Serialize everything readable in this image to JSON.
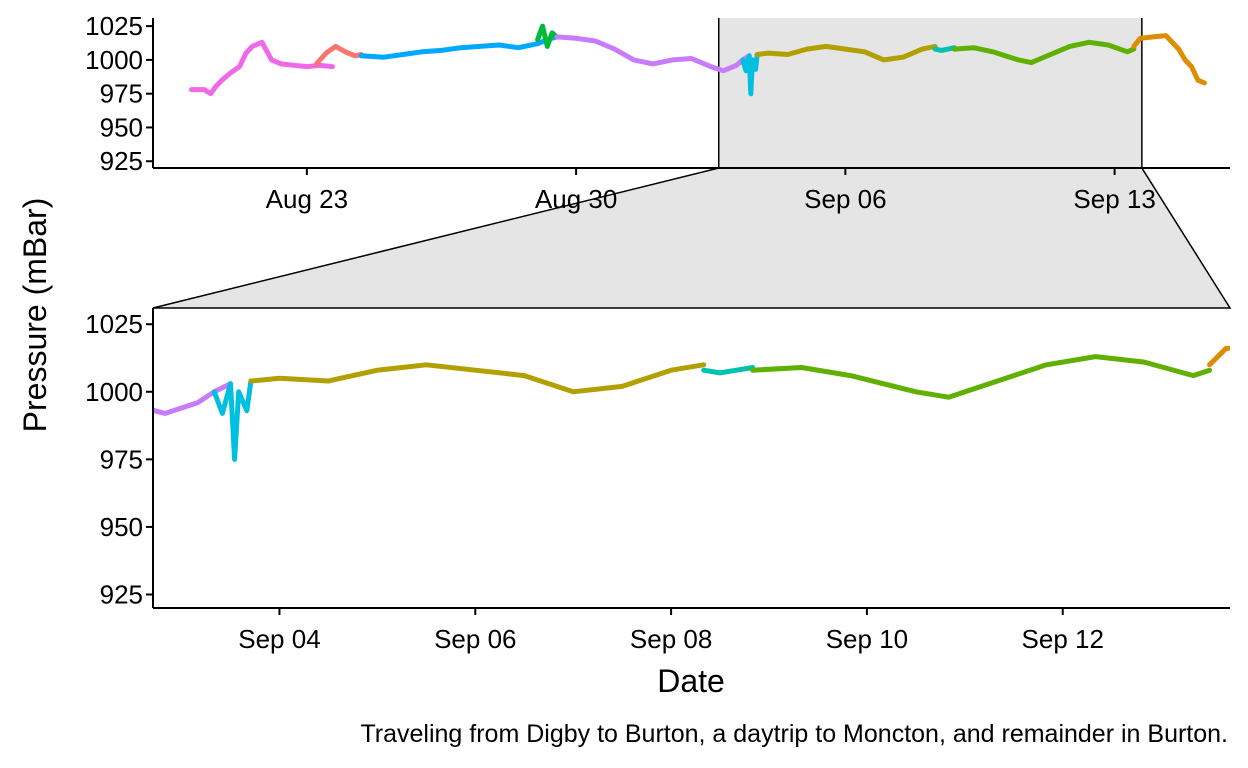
{
  "chart_data": {
    "type": "line",
    "ylabel": "Pressure (mBar)",
    "xlabel": "Date",
    "caption": "Traveling from Digby to Burton, a daytrip to Moncton, and remainder in Burton.",
    "colors": {
      "s1": "#f068e8",
      "s2": "#f8766d",
      "s3": "#00a9ff",
      "s4": "#00ba38",
      "s5": "#c77cff",
      "s6": "#00bfe0",
      "s7": "#b2a000",
      "s8": "#00c0b0",
      "s9": "#5fb000",
      "s10": "#de8c00"
    },
    "zoom_shading": "#e5e5e5",
    "overview": {
      "xlim": [
        "2023-08-19T00:00",
        "2023-09-16T00:00"
      ],
      "ylim": [
        920,
        1031
      ],
      "y_ticks": [
        925,
        950,
        975,
        1000,
        1025
      ],
      "x_ticks": [
        {
          "date": "2023-08-23T00:00",
          "label": "Aug 23"
        },
        {
          "date": "2023-08-30T00:00",
          "label": "Aug 30"
        },
        {
          "date": "2023-09-06T00:00",
          "label": "Sep 06"
        },
        {
          "date": "2023-09-13T00:00",
          "label": "Sep 13"
        }
      ],
      "zoom_window": [
        "2023-09-02T17:00",
        "2023-09-13T17:00"
      ]
    },
    "detail": {
      "xlim": [
        "2023-09-02T17:00",
        "2023-09-13T17:00"
      ],
      "ylim": [
        920,
        1031
      ],
      "y_ticks": [
        925,
        950,
        975,
        1000,
        1025
      ],
      "x_ticks": [
        {
          "date": "2023-09-04T00:00",
          "label": "Sep 04"
        },
        {
          "date": "2023-09-06T00:00",
          "label": "Sep 06"
        },
        {
          "date": "2023-09-08T00:00",
          "label": "Sep 08"
        },
        {
          "date": "2023-09-10T00:00",
          "label": "Sep 10"
        },
        {
          "date": "2023-09-12T00:00",
          "label": "Sep 12"
        }
      ]
    },
    "series": [
      {
        "color": "s1",
        "x": [
          "2023-08-20T00:00",
          "2023-08-20T08:00",
          "2023-08-20T12:00",
          "2023-08-20T15:00",
          "2023-08-20T19:00",
          "2023-08-21T00:00",
          "2023-08-21T06:00",
          "2023-08-21T10:00",
          "2023-08-21T14:00",
          "2023-08-21T20:00",
          "2023-08-22T02:00",
          "2023-08-22T08:00",
          "2023-08-22T16:00",
          "2023-08-23T00:00",
          "2023-08-23T08:00",
          "2023-08-23T16:00"
        ],
        "y": [
          978,
          978,
          975,
          980,
          985,
          990,
          995,
          1005,
          1010,
          1013,
          1000,
          997,
          996,
          995,
          996,
          995
        ]
      },
      {
        "color": "s2",
        "x": [
          "2023-08-23T06:00",
          "2023-08-23T12:00",
          "2023-08-23T18:00",
          "2023-08-24T00:00",
          "2023-08-24T06:00",
          "2023-08-24T10:00"
        ],
        "y": [
          997,
          1005,
          1010,
          1006,
          1003,
          1004
        ]
      },
      {
        "color": "s3",
        "x": [
          "2023-08-24T10:00",
          "2023-08-25T00:00",
          "2023-08-25T12:00",
          "2023-08-26T00:00",
          "2023-08-26T12:00",
          "2023-08-27T00:00",
          "2023-08-27T12:00",
          "2023-08-28T00:00",
          "2023-08-28T12:00",
          "2023-08-29T00:00",
          "2023-08-29T06:00",
          "2023-08-29T12:00"
        ],
        "y": [
          1003,
          1002,
          1004,
          1006,
          1007,
          1009,
          1010,
          1011,
          1009,
          1012,
          1015,
          1017
        ]
      },
      {
        "color": "s4",
        "x": [
          "2023-08-29T00:00",
          "2023-08-29T03:00",
          "2023-08-29T06:00",
          "2023-08-29T09:00",
          "2023-08-29T12:00"
        ],
        "y": [
          1015,
          1025,
          1010,
          1020,
          1017
        ]
      },
      {
        "color": "s5",
        "x": [
          "2023-08-29T12:00",
          "2023-08-30T00:00",
          "2023-08-30T12:00",
          "2023-08-31T00:00",
          "2023-08-31T12:00",
          "2023-09-01T00:00",
          "2023-09-01T12:00",
          "2023-09-02T00:00",
          "2023-09-02T12:00",
          "2023-09-02T20:00",
          "2023-09-03T04:00",
          "2023-09-03T08:00",
          "2023-09-03T12:00"
        ],
        "y": [
          1017,
          1016,
          1014,
          1008,
          1000,
          997,
          1000,
          1001,
          995,
          992,
          996,
          1000,
          1003
        ]
      },
      {
        "color": "s6",
        "x": [
          "2023-09-03T08:00",
          "2023-09-03T10:00",
          "2023-09-03T12:00",
          "2023-09-03T13:00",
          "2023-09-03T14:00",
          "2023-09-03T16:00",
          "2023-09-03T17:00"
        ],
        "y": [
          1000,
          992,
          1003,
          975,
          1000,
          993,
          1004
        ]
      },
      {
        "color": "s7",
        "x": [
          "2023-09-03T17:00",
          "2023-09-04T00:00",
          "2023-09-04T12:00",
          "2023-09-05T00:00",
          "2023-09-05T12:00",
          "2023-09-06T00:00",
          "2023-09-06T12:00",
          "2023-09-07T00:00",
          "2023-09-07T12:00",
          "2023-09-08T00:00",
          "2023-09-08T08:00"
        ],
        "y": [
          1004,
          1005,
          1004,
          1008,
          1010,
          1008,
          1006,
          1000,
          1002,
          1008,
          1010
        ]
      },
      {
        "color": "s8",
        "x": [
          "2023-09-08T08:00",
          "2023-09-08T12:00",
          "2023-09-08T16:00",
          "2023-09-08T20:00"
        ],
        "y": [
          1008,
          1007,
          1008,
          1009
        ]
      },
      {
        "color": "s9",
        "x": [
          "2023-09-08T20:00",
          "2023-09-09T08:00",
          "2023-09-09T20:00",
          "2023-09-10T12:00",
          "2023-09-10T20:00",
          "2023-09-11T08:00",
          "2023-09-11T20:00",
          "2023-09-12T08:00",
          "2023-09-12T20:00",
          "2023-09-13T08:00",
          "2023-09-13T12:00"
        ],
        "y": [
          1008,
          1009,
          1006,
          1000,
          998,
          1004,
          1010,
          1013,
          1011,
          1006,
          1008
        ]
      },
      {
        "color": "s10",
        "x": [
          "2023-09-13T12:00",
          "2023-09-13T16:00",
          "2023-09-14T00:00",
          "2023-09-14T08:00",
          "2023-09-14T16:00",
          "2023-09-14T20:00",
          "2023-09-15T00:00",
          "2023-09-15T04:00",
          "2023-09-15T08:00"
        ],
        "y": [
          1010,
          1016,
          1017,
          1018,
          1008,
          1000,
          995,
          985,
          983
        ]
      }
    ]
  }
}
